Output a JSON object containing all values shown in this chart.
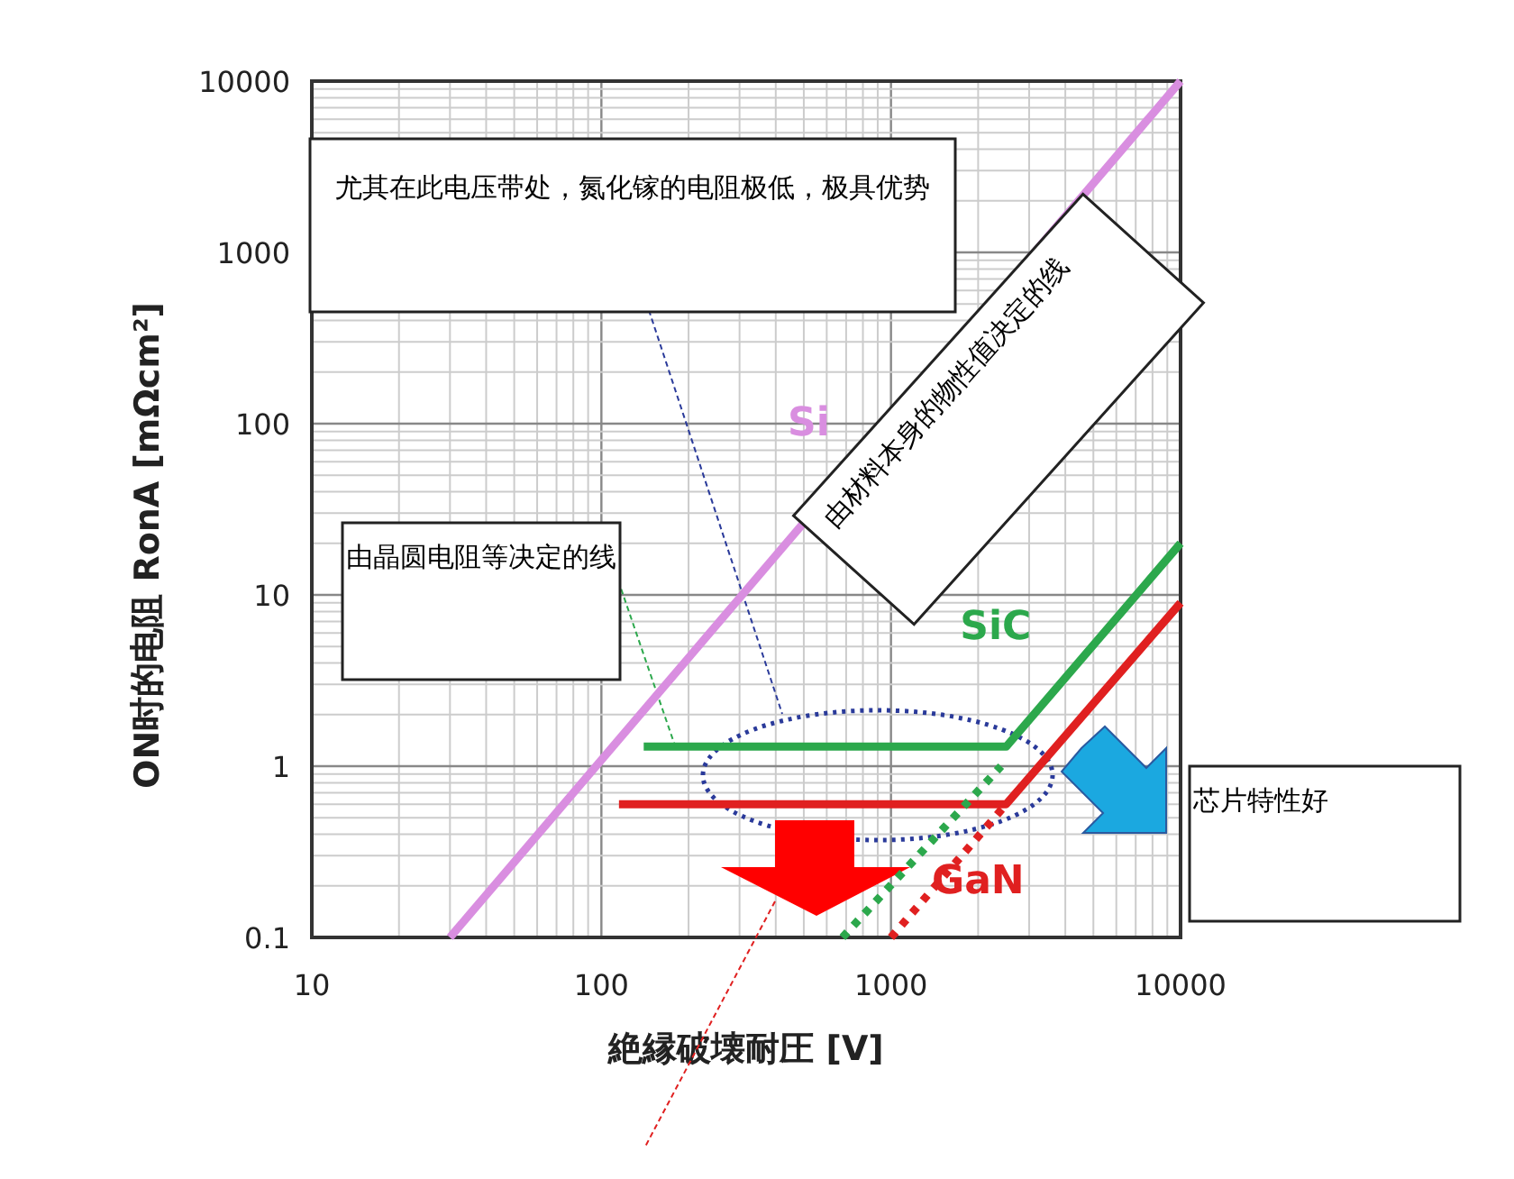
{
  "chart_data": {
    "type": "line",
    "xlabel": "絶縁破壊耐圧 [V]",
    "ylabel": "ON时的电阻  RonA [mΩcm²]",
    "log": "xy",
    "xlim": [
      10,
      10000
    ],
    "ylim": [
      0.1,
      10000
    ],
    "xticks": [
      10,
      100,
      1000,
      10000
    ],
    "yticks": [
      0.1,
      1,
      10,
      100,
      1000,
      10000
    ],
    "grid": true,
    "marker": "none",
    "series": [
      {
        "name": "Si",
        "color": "#d98ee0",
        "x": [
          30,
          10000
        ],
        "values": [
          0.1,
          10000
        ],
        "line_style": "solid"
      },
      {
        "name": "SiC",
        "color": "#2ca84c",
        "x": [
          140,
          2500,
          10000
        ],
        "values": [
          1.3,
          1.3,
          20
        ],
        "line_style": "solid"
      },
      {
        "name": "GaN",
        "color": "#e02020",
        "x": [
          115,
          2500,
          10000
        ],
        "values": [
          0.6,
          0.6,
          9
        ],
        "line_style": "solid"
      },
      {
        "color": "#2ca84c",
        "x": [
          680,
          2400
        ],
        "values": [
          0.1,
          1.0
        ],
        "line_style": "dotted"
      },
      {
        "color": "#e02020",
        "x": [
          1000,
          2500
        ],
        "values": [
          0.1,
          0.6
        ],
        "line_style": "dotted"
      }
    ],
    "annotations": [
      "尤其在此电压带处，氮化镓的电阻极低，极具优势",
      {
        "text": "由晶圆电阻等决定的线",
        "x": 180,
        "y": 1.3
      },
      "由材料本身的物性值决定的线",
      "芯片特性好"
    ]
  }
}
